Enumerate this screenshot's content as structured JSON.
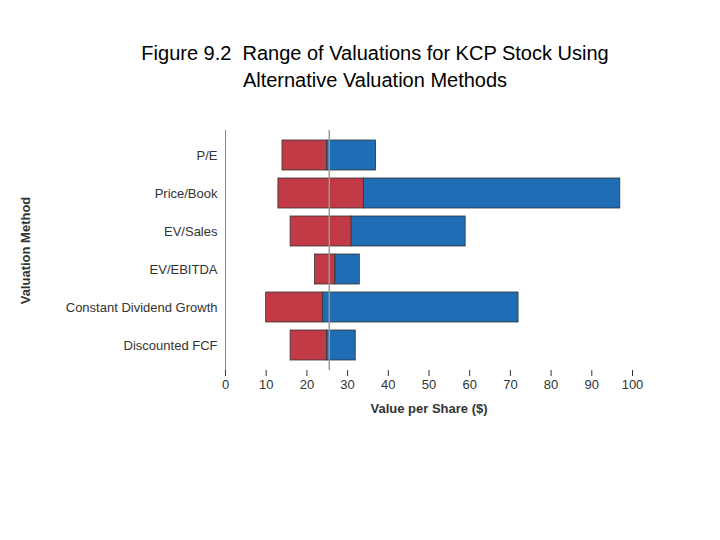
{
  "chart_data": {
    "type": "range_bar",
    "title": "Figure 9.2  Range of Valuations for KCP Stock Using Alternative Valuation Methods",
    "orientation": "horizontal",
    "x_label": "Value per Share ($)",
    "y_label": "Valuation Method",
    "categories": [
      "P/E",
      "Price/Book",
      "EV/Sales",
      "EV/EBITDA",
      "Constant Dividend Growth",
      "Discounted FCF"
    ],
    "low": [
      14,
      13,
      16,
      22,
      10,
      16
    ],
    "mid": [
      25,
      34,
      31,
      27,
      24,
      25
    ],
    "high": [
      37,
      97,
      59,
      33,
      72,
      32
    ],
    "colors": [
      "#c23a45",
      "#1f6db5"
    ],
    "reference_line": 25.5,
    "xlim": [
      0,
      100
    ],
    "xticks": [
      0,
      10,
      20,
      30,
      40,
      50,
      60,
      70,
      80,
      90,
      100
    ],
    "grid": false
  }
}
